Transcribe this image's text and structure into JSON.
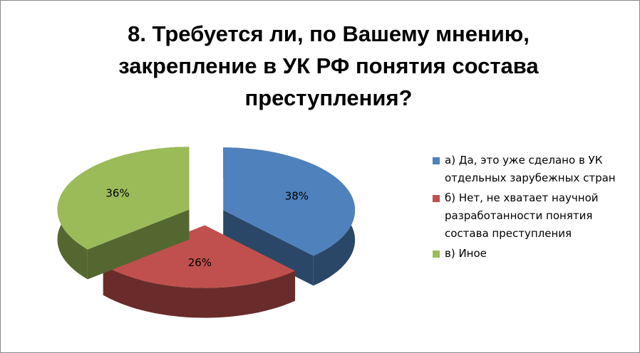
{
  "chart_data": {
    "type": "pie",
    "title": "8. Требуется ли, по Вашему мнению, закрепление в УК РФ понятия состава преступления?",
    "categories": [
      "а) Да, это уже сделано в УК отдельных зарубежных стран",
      "б) Нет, не хватает научной разработанности понятия состава преступления",
      "в) Иное"
    ],
    "values": [
      38,
      26,
      36
    ],
    "value_labels": [
      "38%",
      "26%",
      "36%"
    ],
    "colors": [
      "#4f81bd",
      "#c0504d",
      "#9bbb59"
    ],
    "legend": "right"
  }
}
